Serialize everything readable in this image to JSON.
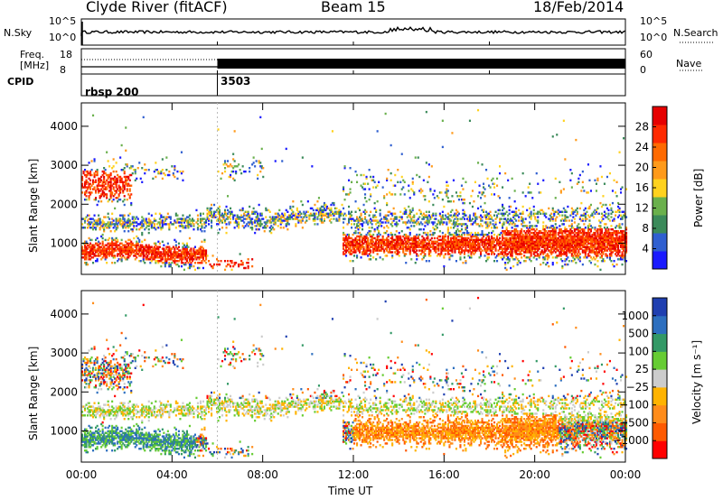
{
  "header": {
    "station": "Clyde River (fitACF)",
    "beam": "Beam 15",
    "date": "18/Feb/2014"
  },
  "strip": {
    "nsky_label": "N.Sky",
    "nsearch_label": "N.Search",
    "noise_ticks": [
      "10^5",
      "10^0"
    ],
    "freq_label_1": "Freq.",
    "freq_label_2": "[MHz]",
    "freq_ticks": [
      "18",
      "8"
    ],
    "nave_ticks": [
      "60",
      "0"
    ],
    "nave_label": "Nave",
    "cpid_label": "CPID",
    "cpid_segments": [
      {
        "name": "rbsp 200",
        "start_hour": 0
      },
      {
        "name": "3503",
        "start_hour": 6
      }
    ]
  },
  "colors": {
    "power_scale": [
      "#1a1aff",
      "#2f5fd0",
      "#3b8a5a",
      "#6ab04c",
      "#ffd21e",
      "#ff9a1a",
      "#ff6a00",
      "#ff2a00",
      "#e60000"
    ],
    "velocity_scale": [
      "#ff0000",
      "#ff5a00",
      "#ff8c1a",
      "#ffb300",
      "#cccccc",
      "#66cc33",
      "#339966",
      "#2d6fbf",
      "#1f3fb0"
    ]
  },
  "chart_data": [
    {
      "type": "heatmap",
      "panel": "power",
      "ylabel": "Slant Range [km]",
      "xlabel": "Time UT",
      "x_ticks": [
        "00:00",
        "04:00",
        "08:00",
        "12:00",
        "16:00",
        "20:00",
        "00:00"
      ],
      "y_ticks": [
        1000,
        2000,
        3000,
        4000
      ],
      "ylim": [
        200,
        4600
      ],
      "xlim_hours": [
        0,
        24
      ],
      "colorbar": {
        "label": "Power [dB]",
        "ticks": [
          4,
          8,
          12,
          16,
          20,
          24,
          28
        ],
        "range": [
          0,
          32
        ]
      }
    },
    {
      "type": "heatmap",
      "panel": "velocity",
      "ylabel": "Slant Range [km]",
      "xlabel": "Time UT",
      "x_ticks": [
        "00:00",
        "04:00",
        "08:00",
        "12:00",
        "16:00",
        "20:00",
        "00:00"
      ],
      "y_ticks": [
        1000,
        2000,
        3000,
        4000
      ],
      "ylim": [
        200,
        4600
      ],
      "xlim_hours": [
        0,
        24
      ],
      "colorbar": {
        "label": "Velocity [m s⁻¹]",
        "ticks": [
          -1000,
          -500,
          -100,
          -25,
          25,
          100,
          500,
          1000
        ],
        "tick_labels": [
          "−1000",
          "−500",
          "−100",
          "−25",
          "25",
          "100",
          "500",
          "1000"
        ]
      }
    }
  ]
}
